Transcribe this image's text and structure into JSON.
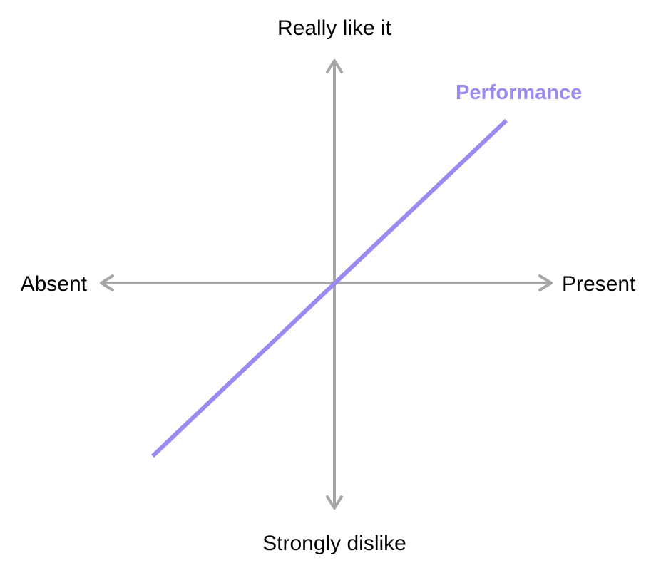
{
  "axes": {
    "top_label": "Really like it",
    "bottom_label": "Strongly dislike",
    "left_label": "Absent",
    "right_label": "Present",
    "color": "#a6a6a6"
  },
  "curves": [
    {
      "label": "Performance",
      "color": "#9b8aef"
    }
  ]
}
